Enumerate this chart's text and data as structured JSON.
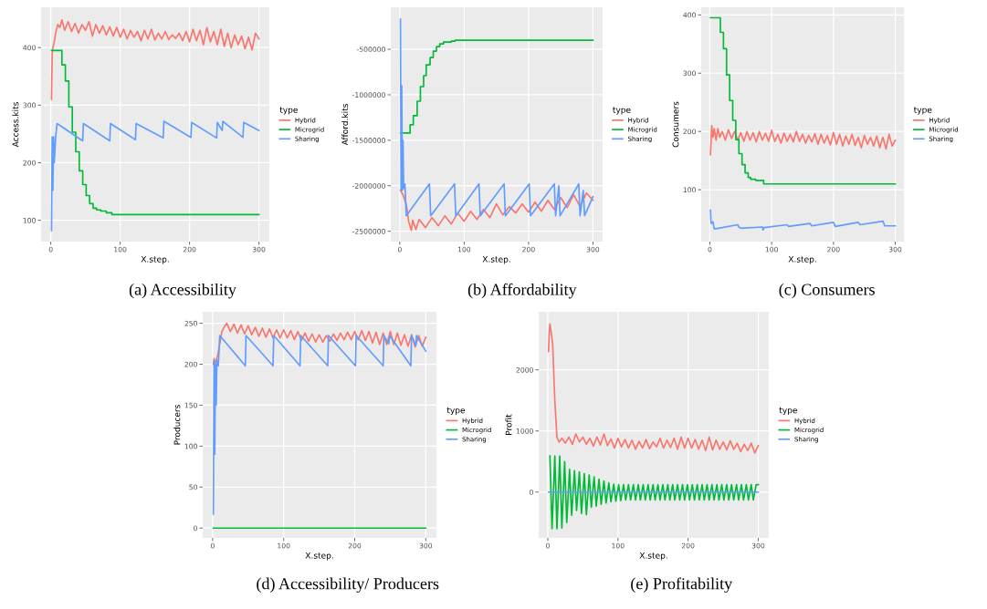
{
  "chart_data": [
    {
      "type": "line",
      "title": "(a) Accessibility",
      "xlabel": "X.step.",
      "ylabel": "Access.kits",
      "legend_title": "type",
      "legend": "right",
      "grid": true,
      "xlim": [
        -14,
        315
      ],
      "xticks": [
        0,
        100,
        200,
        300
      ],
      "ylim": [
        63,
        470
      ],
      "yticks": [
        100,
        200,
        300,
        400
      ],
      "series": [
        {
          "name": "Hybrid",
          "color": "#f8766d",
          "x": [
            1,
            2,
            3,
            5,
            7,
            10,
            13,
            16,
            20,
            25,
            30,
            35,
            40,
            45,
            50,
            55,
            60,
            65,
            70,
            75,
            80,
            85,
            90,
            95,
            100,
            105,
            110,
            115,
            120,
            125,
            130,
            135,
            140,
            145,
            150,
            155,
            160,
            165,
            170,
            175,
            180,
            185,
            190,
            195,
            200,
            205,
            210,
            215,
            220,
            225,
            230,
            235,
            240,
            245,
            250,
            255,
            260,
            265,
            270,
            275,
            280,
            285,
            290,
            295,
            300
          ],
          "values": [
            310,
            390,
            400,
            410,
            425,
            440,
            435,
            448,
            430,
            445,
            428,
            442,
            425,
            440,
            430,
            445,
            420,
            440,
            425,
            438,
            422,
            436,
            420,
            435,
            418,
            432,
            415,
            430,
            418,
            428,
            412,
            430,
            415,
            432,
            413,
            425,
            415,
            428,
            414,
            422,
            416,
            425,
            412,
            428,
            410,
            432,
            412,
            430,
            405,
            435,
            410,
            428,
            405,
            432,
            402,
            425,
            400,
            422,
            405,
            420,
            398,
            418,
            396,
            425,
            415
          ]
        },
        {
          "name": "Microgrid",
          "color": "#00ba38",
          "type": "step",
          "x": [
            1,
            16,
            21,
            26,
            31,
            36,
            41,
            46,
            51,
            56,
            61,
            66,
            72,
            80,
            88,
            300
          ],
          "values": [
            395,
            370,
            342,
            297,
            253,
            219,
            186,
            162,
            143,
            129,
            121,
            118,
            116,
            113,
            110,
            110
          ]
        },
        {
          "name": "Sharing",
          "color": "#619cff",
          "x": [
            1,
            2,
            3,
            4,
            5,
            7,
            9,
            46,
            47,
            85,
            86,
            122,
            123,
            162,
            163,
            202,
            203,
            239,
            240,
            247,
            248,
            277,
            278,
            300
          ],
          "values": [
            82,
            245,
            152,
            245,
            200,
            245,
            268,
            238,
            268,
            238,
            268,
            240,
            268,
            243,
            272,
            244,
            270,
            243,
            270,
            256,
            272,
            244,
            270,
            256
          ]
        }
      ]
    },
    {
      "type": "line",
      "title": "(b) Affordability",
      "xlabel": "X.step.",
      "ylabel": "Afford.kits",
      "legend_title": "type",
      "legend": "right",
      "grid": true,
      "xlim": [
        -14,
        315
      ],
      "xticks": [
        0,
        100,
        200,
        300
      ],
      "ylim": [
        -2614000,
        -38000
      ],
      "yticks": [
        -2500000,
        -2000000,
        -1500000,
        -1000000,
        -500000
      ],
      "series": [
        {
          "name": "Hybrid",
          "color": "#f8766d",
          "x": [
            1,
            5,
            10,
            14,
            18,
            20,
            25,
            30,
            40,
            50,
            60,
            70,
            80,
            90,
            100,
            110,
            120,
            130,
            140,
            150,
            160,
            170,
            180,
            190,
            200,
            210,
            220,
            230,
            240,
            250,
            260,
            270,
            280,
            290,
            300
          ],
          "values": [
            -2050000,
            -2100000,
            -2200000,
            -2400000,
            -2490000,
            -2380000,
            -2480000,
            -2370000,
            -2460000,
            -2350000,
            -2440000,
            -2330000,
            -2420000,
            -2300000,
            -2390000,
            -2280000,
            -2370000,
            -2260000,
            -2350000,
            -2200000,
            -2320000,
            -2230000,
            -2300000,
            -2200000,
            -2290000,
            -2180000,
            -2280000,
            -2160000,
            -2260000,
            -2130000,
            -2240000,
            -2100000,
            -2230000,
            -2080000,
            -2160000
          ]
        },
        {
          "name": "Microgrid",
          "color": "#00ba38",
          "type": "step",
          "x": [
            1,
            16,
            21,
            27,
            32,
            37,
            41,
            47,
            52,
            57,
            62,
            68,
            80,
            86,
            300
          ],
          "values": [
            -1420000,
            -1330000,
            -1230000,
            -1070000,
            -910000,
            -790000,
            -670000,
            -590000,
            -520000,
            -470000,
            -440000,
            -420000,
            -410000,
            -400000,
            -400000
          ]
        },
        {
          "name": "Sharing",
          "color": "#619cff",
          "x": [
            1,
            2,
            3,
            4,
            5,
            6,
            8,
            10,
            46,
            48,
            85,
            87,
            123,
            125,
            162,
            164,
            201,
            203,
            240,
            242,
            247,
            249,
            278,
            280,
            285,
            287,
            300
          ],
          "values": [
            -170000,
            -2050000,
            -900000,
            -2050000,
            -1500000,
            -2030000,
            -1980000,
            -2330000,
            -1980000,
            -2330000,
            -1980000,
            -2330000,
            -1980000,
            -2330000,
            -1980000,
            -2330000,
            -1980000,
            -2330000,
            -1980000,
            -2330000,
            -2000000,
            -2330000,
            -1980000,
            -2330000,
            -2050000,
            -2330000,
            -2120000
          ]
        }
      ]
    },
    {
      "type": "line",
      "title": "(c) Consumers",
      "xlabel": "X.step.",
      "ylabel": "Consumers",
      "legend_title": "type",
      "legend": "right",
      "grid": true,
      "xlim": [
        -14,
        314
      ],
      "xticks": [
        0,
        100,
        200,
        300
      ],
      "ylim": [
        11,
        413
      ],
      "yticks": [
        100,
        200,
        300,
        400
      ],
      "series": [
        {
          "name": "Hybrid",
          "color": "#f8766d",
          "x": [
            1,
            2,
            3,
            5,
            7,
            10,
            13,
            16,
            20,
            25,
            30,
            35,
            40,
            45,
            50,
            55,
            60,
            65,
            70,
            75,
            80,
            85,
            90,
            95,
            100,
            105,
            110,
            115,
            120,
            125,
            130,
            135,
            140,
            145,
            150,
            155,
            160,
            165,
            170,
            175,
            180,
            185,
            190,
            195,
            200,
            205,
            210,
            215,
            220,
            225,
            230,
            235,
            240,
            245,
            250,
            255,
            260,
            265,
            270,
            275,
            280,
            285,
            290,
            295,
            300
          ],
          "values": [
            160,
            185,
            210,
            190,
            205,
            185,
            205,
            190,
            200,
            185,
            203,
            188,
            200,
            185,
            198,
            183,
            200,
            185,
            198,
            182,
            200,
            185,
            197,
            183,
            202,
            183,
            195,
            180,
            197,
            183,
            195,
            182,
            200,
            183,
            195,
            180,
            193,
            182,
            196,
            178,
            195,
            180,
            193,
            177,
            198,
            178,
            195,
            175,
            192,
            178,
            195,
            176,
            190,
            172,
            193,
            178,
            190,
            175,
            192,
            172,
            190,
            170,
            195,
            175,
            185
          ]
        },
        {
          "name": "Microgrid",
          "color": "#00ba38",
          "type": "step",
          "x": [
            1,
            17,
            22,
            27,
            32,
            37,
            42,
            47,
            52,
            57,
            62,
            66,
            74,
            87,
            300
          ],
          "values": [
            395,
            370,
            342,
            297,
            253,
            219,
            186,
            162,
            143,
            129,
            121,
            118,
            116,
            110,
            110
          ]
        },
        {
          "name": "Sharing",
          "color": "#619cff",
          "x": [
            1,
            2,
            5,
            7,
            10,
            45,
            47,
            50,
            85,
            86,
            88,
            125,
            127,
            162,
            165,
            200,
            203,
            240,
            243,
            280,
            283,
            300
          ],
          "values": [
            65,
            42,
            45,
            33,
            33,
            40,
            36,
            34,
            36,
            31,
            35,
            40,
            37,
            42,
            38,
            44,
            37,
            44,
            40,
            46,
            38,
            38
          ]
        }
      ]
    },
    {
      "type": "line",
      "title": "(d) Accessibility/ Producers",
      "xlabel": "X.step.",
      "ylabel": "Producers",
      "legend_title": "type",
      "legend": "right",
      "grid": true,
      "xlim": [
        -14,
        315
      ],
      "xticks": [
        0,
        100,
        200,
        300
      ],
      "ylim": [
        -12,
        264
      ],
      "yticks": [
        0,
        50,
        100,
        150,
        200,
        250
      ],
      "series": [
        {
          "name": "Hybrid",
          "color": "#f8766d",
          "x": [
            1,
            2,
            3,
            5,
            7,
            10,
            13,
            16,
            20,
            25,
            30,
            35,
            40,
            45,
            50,
            55,
            60,
            65,
            70,
            75,
            80,
            85,
            90,
            95,
            100,
            105,
            110,
            115,
            120,
            125,
            130,
            135,
            140,
            145,
            150,
            155,
            160,
            165,
            170,
            175,
            180,
            185,
            190,
            195,
            200,
            205,
            210,
            215,
            220,
            225,
            230,
            235,
            240,
            245,
            250,
            255,
            260,
            265,
            270,
            275,
            280,
            285,
            290,
            295,
            300
          ],
          "values": [
            200,
            207,
            200,
            205,
            210,
            225,
            240,
            245,
            250,
            240,
            249,
            238,
            248,
            237,
            247,
            236,
            245,
            234,
            244,
            233,
            243,
            232,
            242,
            232,
            242,
            232,
            241,
            230,
            240,
            229,
            238,
            228,
            237,
            227,
            236,
            227,
            235,
            228,
            237,
            229,
            238,
            230,
            239,
            230,
            240,
            230,
            241,
            229,
            240,
            226,
            239,
            224,
            238,
            224,
            240,
            224,
            238,
            223,
            236,
            222,
            236,
            221,
            235,
            222,
            233
          ]
        },
        {
          "name": "Microgrid",
          "color": "#00ba38",
          "x": [
            1,
            300
          ],
          "values": [
            0,
            0
          ]
        },
        {
          "name": "Sharing",
          "color": "#619cff",
          "x": [
            1,
            2,
            3,
            4,
            5,
            6,
            8,
            10,
            46,
            47,
            85,
            86,
            123,
            124,
            162,
            163,
            201,
            202,
            240,
            241,
            248,
            249,
            279,
            280,
            286,
            287,
            300
          ],
          "values": [
            17,
            205,
            90,
            200,
            150,
            205,
            198,
            235,
            198,
            235,
            198,
            235,
            198,
            235,
            198,
            235,
            198,
            235,
            198,
            235,
            225,
            235,
            198,
            235,
            223,
            235,
            216
          ]
        }
      ]
    },
    {
      "type": "line",
      "title": "(e) Profitability",
      "xlabel": "X.step.",
      "ylabel": "Profit",
      "legend_title": "type",
      "legend": "right",
      "grid": true,
      "xlim": [
        -13,
        315
      ],
      "xticks": [
        0,
        100,
        200,
        300
      ],
      "ylim": [
        -750,
        2950
      ],
      "yticks": [
        0,
        1000,
        2000
      ],
      "series": [
        {
          "name": "Hybrid",
          "color": "#f8766d",
          "x": [
            1,
            2,
            3,
            5,
            7,
            10,
            13,
            16,
            20,
            25,
            30,
            35,
            40,
            45,
            50,
            55,
            60,
            65,
            70,
            75,
            80,
            85,
            90,
            95,
            100,
            105,
            110,
            115,
            120,
            125,
            130,
            135,
            140,
            145,
            150,
            155,
            160,
            165,
            170,
            175,
            180,
            185,
            190,
            195,
            200,
            205,
            210,
            215,
            220,
            225,
            230,
            235,
            240,
            245,
            250,
            255,
            260,
            265,
            270,
            275,
            280,
            285,
            290,
            295,
            300
          ],
          "values": [
            2300,
            2600,
            2750,
            2600,
            2400,
            1500,
            900,
            820,
            880,
            800,
            900,
            780,
            950,
            820,
            900,
            780,
            880,
            750,
            900,
            770,
            950,
            760,
            870,
            720,
            880,
            740,
            860,
            720,
            850,
            700,
            830,
            720,
            860,
            710,
            820,
            740,
            880,
            720,
            850,
            730,
            880,
            700,
            900,
            720,
            880,
            720,
            860,
            700,
            850,
            680,
            900,
            690,
            850,
            700,
            820,
            690,
            840,
            700,
            800,
            660,
            780,
            680,
            800,
            640,
            760
          ]
        },
        {
          "name": "Microgrid",
          "color": "#00ba38",
          "x": [
            3,
            6,
            10,
            13,
            17,
            20,
            24,
            27,
            31,
            34,
            38,
            41,
            45,
            48,
            52,
            55,
            59,
            62,
            66,
            69,
            73,
            76,
            80,
            83,
            87,
            90,
            94,
            97,
            101,
            104,
            108,
            111,
            115,
            118,
            122,
            125,
            129,
            132,
            136,
            139,
            143,
            146,
            150,
            153,
            157,
            160,
            164,
            167,
            171,
            174,
            178,
            181,
            185,
            188,
            192,
            195,
            199,
            202,
            206,
            209,
            213,
            216,
            220,
            223,
            227,
            230,
            234,
            237,
            241,
            244,
            248,
            251,
            255,
            258,
            262,
            265,
            269,
            272,
            276,
            279,
            283,
            286,
            290,
            293,
            297,
            300
          ],
          "values": [
            590,
            -600,
            590,
            -600,
            590,
            -590,
            500,
            -500,
            370,
            -380,
            350,
            -300,
            330,
            -350,
            300,
            -370,
            280,
            -250,
            250,
            -230,
            210,
            -200,
            180,
            -180,
            150,
            -160,
            130,
            -150,
            120,
            -140,
            120,
            -130,
            120,
            -130,
            120,
            -130,
            120,
            -130,
            120,
            -130,
            120,
            -130,
            120,
            -130,
            120,
            -130,
            120,
            -130,
            120,
            -130,
            120,
            -130,
            120,
            -130,
            120,
            -130,
            120,
            -130,
            120,
            -130,
            120,
            -130,
            120,
            -130,
            120,
            -130,
            120,
            -130,
            120,
            -130,
            120,
            -130,
            120,
            -130,
            120,
            -130,
            120,
            -130,
            120,
            -130,
            120,
            -130,
            120,
            -130,
            120,
            120
          ]
        },
        {
          "name": "Sharing",
          "color": "#619cff",
          "x": [
            1,
            300
          ],
          "values": [
            0,
            0
          ]
        }
      ]
    }
  ]
}
